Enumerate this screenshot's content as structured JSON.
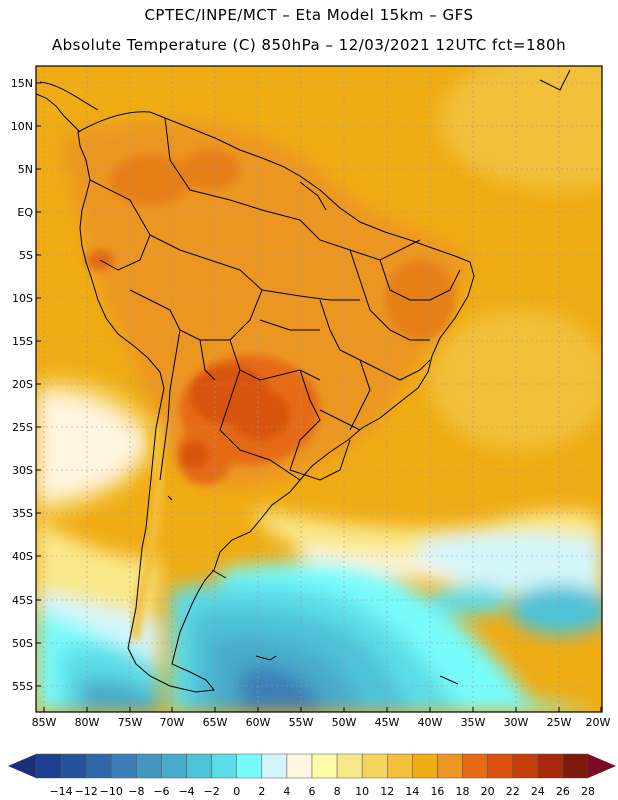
{
  "header": {
    "line1": "CPTEC/INPE/MCT  –   Eta Model 15km  –  GFS",
    "line2": "Absolute Temperature (C) 850hPa  –  12/03/2021  12UTC  fct=180h"
  },
  "map": {
    "lat_ticks": [
      "15N",
      "10N",
      "5N",
      "EQ",
      "5S",
      "10S",
      "15S",
      "20S",
      "25S",
      "30S",
      "35S",
      "40S",
      "45S",
      "50S",
      "55S"
    ],
    "lon_ticks": [
      "85W",
      "80W",
      "75W",
      "70W",
      "65W",
      "60W",
      "55W",
      "50W",
      "45W",
      "40W",
      "35W",
      "30W",
      "25W",
      "20W"
    ],
    "lat_range": [
      -58,
      16
    ],
    "lon_range": [
      -86,
      -20
    ]
  },
  "colorbar": {
    "labels": [
      "-14",
      "-12",
      "-10",
      "-8",
      "-6",
      "-4",
      "-2",
      "0",
      "2",
      "4",
      "6",
      "8",
      "10",
      "12",
      "14",
      "16",
      "18",
      "20",
      "22",
      "24",
      "26",
      "28"
    ],
    "colors": [
      "#1c3f8f",
      "#24539c",
      "#2f68a9",
      "#3b7fb6",
      "#4597c1",
      "#48abcb",
      "#4dc2d8",
      "#5ddde8",
      "#78fbfb",
      "#d4f6fb",
      "#fff6e0",
      "#fffaa8",
      "#f9e88a",
      "#f6d45d",
      "#f2c03b",
      "#f0ac14",
      "#ec9624",
      "#e66a12",
      "#d8520d",
      "#c43e0c",
      "#a8280c",
      "#7e1a0c"
    ],
    "under_color": "#1b2f7a",
    "over_color": "#7a0a2a"
  }
}
